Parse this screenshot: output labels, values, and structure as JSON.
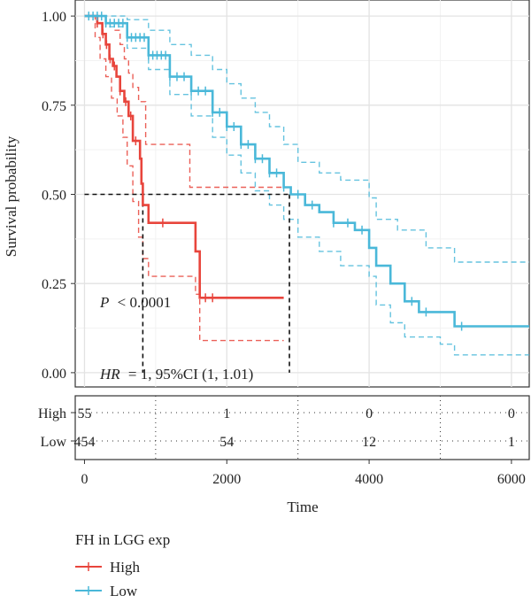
{
  "chart_data": {
    "type": "line",
    "subtype": "kaplan-meier",
    "title": "",
    "xlabel": "Time",
    "ylabel": "Survival probability",
    "xlim": [
      -130,
      6250
    ],
    "ylim": [
      -0.04,
      1.045
    ],
    "x_ticks": [
      "0",
      "2000",
      "4000",
      "6000"
    ],
    "y_ticks": [
      "0.00",
      "0.25",
      "0.50",
      "0.75",
      "1.00"
    ],
    "grid": true,
    "annotations": {
      "p_symbol": "P",
      "p_value": "< 0.0001",
      "hr_symbol": "HR",
      "hr_value": "= 1, 95%CI (1, 1.01)"
    },
    "median_survival": [
      {
        "series": "High",
        "x": 820
      },
      {
        "series": "Low",
        "x": 2880
      }
    ],
    "series": [
      {
        "name": "High",
        "color": "#e8453c",
        "curve": [
          [
            0,
            1.0
          ],
          [
            180,
            0.98
          ],
          [
            250,
            0.95
          ],
          [
            300,
            0.92
          ],
          [
            350,
            0.88
          ],
          [
            400,
            0.86
          ],
          [
            450,
            0.83
          ],
          [
            500,
            0.79
          ],
          [
            560,
            0.76
          ],
          [
            620,
            0.72
          ],
          [
            680,
            0.65
          ],
          [
            780,
            0.6
          ],
          [
            800,
            0.53
          ],
          [
            820,
            0.47
          ],
          [
            900,
            0.42
          ],
          [
            1560,
            0.34
          ],
          [
            1620,
            0.21
          ],
          [
            2800,
            0.21
          ]
        ],
        "upper": [
          [
            0,
            1.0
          ],
          [
            200,
            1.0
          ],
          [
            300,
            0.98
          ],
          [
            420,
            0.96
          ],
          [
            500,
            0.92
          ],
          [
            560,
            0.88
          ],
          [
            620,
            0.84
          ],
          [
            680,
            0.8
          ],
          [
            760,
            0.76
          ],
          [
            860,
            0.64
          ],
          [
            1480,
            0.52
          ],
          [
            1600,
            0.52
          ],
          [
            2800,
            0.52
          ]
        ],
        "lower": [
          [
            0,
            1.0
          ],
          [
            150,
            0.94
          ],
          [
            220,
            0.88
          ],
          [
            300,
            0.83
          ],
          [
            380,
            0.77
          ],
          [
            460,
            0.72
          ],
          [
            540,
            0.66
          ],
          [
            600,
            0.58
          ],
          [
            680,
            0.48
          ],
          [
            760,
            0.38
          ],
          [
            820,
            0.32
          ],
          [
            900,
            0.27
          ],
          [
            1560,
            0.22
          ],
          [
            1620,
            0.09
          ],
          [
            2800,
            0.09
          ]
        ],
        "censor_x": [
          180,
          260,
          310,
          360,
          420,
          500,
          580,
          650,
          720,
          1100,
          1700,
          1800
        ],
        "at_risk": [
          55,
          1,
          0,
          0
        ]
      },
      {
        "name": "Low",
        "color": "#4ab8d9",
        "curve": [
          [
            0,
            1.0
          ],
          [
            300,
            0.98
          ],
          [
            600,
            0.94
          ],
          [
            900,
            0.89
          ],
          [
            1200,
            0.83
          ],
          [
            1500,
            0.79
          ],
          [
            1800,
            0.73
          ],
          [
            2000,
            0.69
          ],
          [
            2200,
            0.64
          ],
          [
            2400,
            0.6
          ],
          [
            2600,
            0.56
          ],
          [
            2800,
            0.52
          ],
          [
            2900,
            0.5
          ],
          [
            3100,
            0.47
          ],
          [
            3300,
            0.45
          ],
          [
            3500,
            0.42
          ],
          [
            3800,
            0.4
          ],
          [
            4000,
            0.35
          ],
          [
            4100,
            0.3
          ],
          [
            4300,
            0.25
          ],
          [
            4500,
            0.2
          ],
          [
            4700,
            0.17
          ],
          [
            5000,
            0.17
          ],
          [
            5200,
            0.13
          ],
          [
            6250,
            0.13
          ]
        ],
        "upper": [
          [
            0,
            1.0
          ],
          [
            300,
            1.0
          ],
          [
            600,
            0.99
          ],
          [
            900,
            0.96
          ],
          [
            1200,
            0.92
          ],
          [
            1500,
            0.89
          ],
          [
            1800,
            0.85
          ],
          [
            2000,
            0.81
          ],
          [
            2200,
            0.77
          ],
          [
            2400,
            0.73
          ],
          [
            2600,
            0.69
          ],
          [
            2800,
            0.64
          ],
          [
            3000,
            0.59
          ],
          [
            3300,
            0.56
          ],
          [
            3600,
            0.54
          ],
          [
            4000,
            0.49
          ],
          [
            4100,
            0.43
          ],
          [
            4400,
            0.4
          ],
          [
            4800,
            0.35
          ],
          [
            5200,
            0.31
          ],
          [
            6250,
            0.31
          ]
        ],
        "lower": [
          [
            0,
            1.0
          ],
          [
            300,
            0.97
          ],
          [
            600,
            0.91
          ],
          [
            900,
            0.85
          ],
          [
            1200,
            0.78
          ],
          [
            1500,
            0.72
          ],
          [
            1800,
            0.66
          ],
          [
            2000,
            0.61
          ],
          [
            2200,
            0.56
          ],
          [
            2400,
            0.51
          ],
          [
            2600,
            0.47
          ],
          [
            2800,
            0.43
          ],
          [
            3000,
            0.38
          ],
          [
            3300,
            0.34
          ],
          [
            3600,
            0.3
          ],
          [
            4000,
            0.27
          ],
          [
            4100,
            0.19
          ],
          [
            4300,
            0.14
          ],
          [
            4500,
            0.1
          ],
          [
            5000,
            0.08
          ],
          [
            5200,
            0.05
          ],
          [
            6250,
            0.05
          ]
        ],
        "censor_x": [
          60,
          120,
          180,
          240,
          300,
          360,
          420,
          480,
          540,
          600,
          660,
          720,
          780,
          840,
          900,
          960,
          1020,
          1080,
          1140,
          1200,
          1300,
          1400,
          1500,
          1600,
          1700,
          1800,
          1900,
          2000,
          2100,
          2200,
          2300,
          2400,
          2500,
          2600,
          2700,
          2800,
          3000,
          3200,
          3500,
          3700,
          3900,
          4600,
          4800,
          5300
        ],
        "at_risk": [
          454,
          54,
          12,
          1
        ]
      }
    ],
    "risk_table": {
      "row_labels": [
        "High",
        "Low"
      ],
      "time_points": [
        0,
        2000,
        4000,
        6000
      ]
    },
    "legend": {
      "title": "FH in LGG exp",
      "position": "bottom",
      "entries": [
        "High",
        "Low"
      ]
    }
  }
}
